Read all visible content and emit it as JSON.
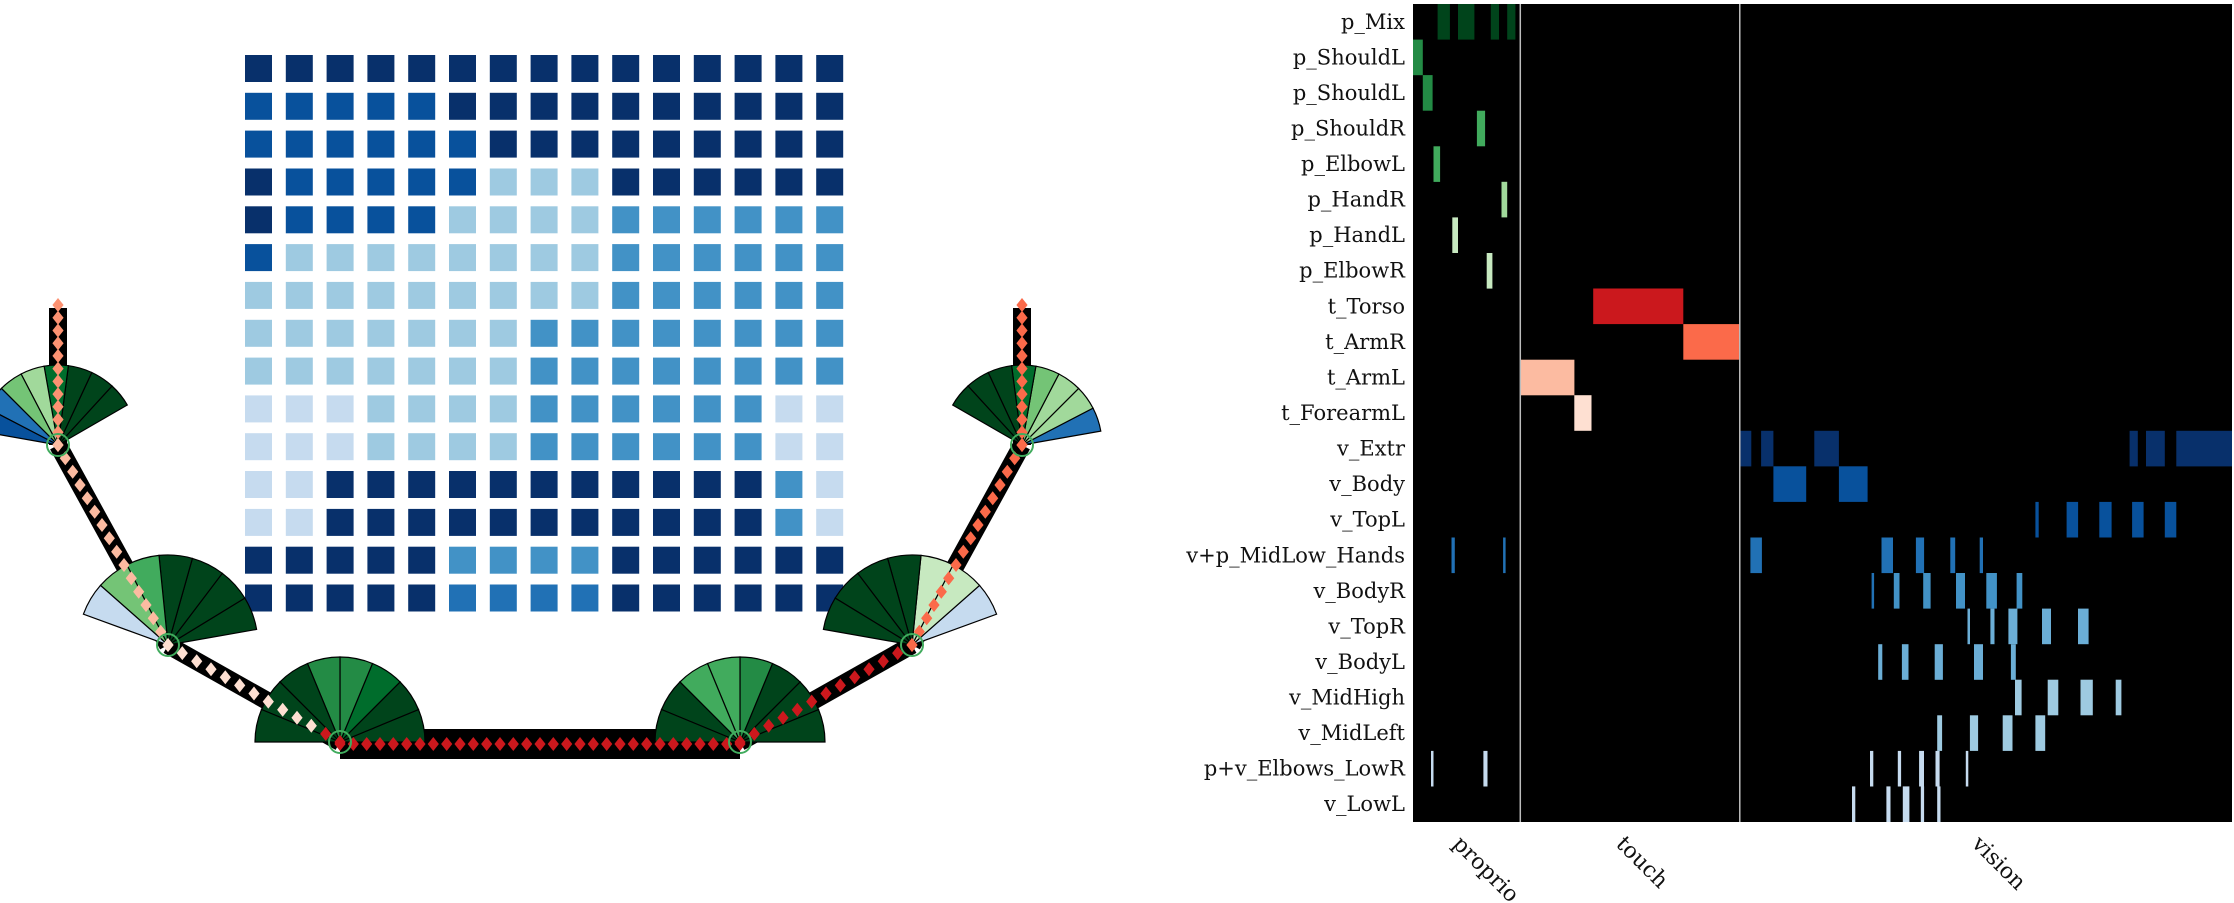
{
  "colors": {
    "blues": [
      "#c6dbef",
      "#9ecae1",
      "#6baed6",
      "#4292c6",
      "#2171b5",
      "#08519c",
      "#08306b"
    ],
    "greens": [
      "#c7e9c0",
      "#a1d99b",
      "#74c476",
      "#41ab5d",
      "#238b45",
      "#006d2c",
      "#00441b"
    ],
    "reds": [
      "#fee0d2",
      "#fcbba1",
      "#fc9272",
      "#fb6a4a",
      "#ef3b2c",
      "#cb181d"
    ],
    "heatmap_background": "#000000",
    "separator": "#bdbdbd"
  },
  "grid_levels": [
    [
      6,
      6,
      6,
      6,
      6,
      6,
      6,
      6,
      6,
      6,
      6,
      6,
      6,
      6,
      6
    ],
    [
      5,
      5,
      5,
      5,
      5,
      6,
      6,
      6,
      6,
      6,
      6,
      6,
      6,
      6,
      6
    ],
    [
      5,
      5,
      5,
      5,
      5,
      5,
      6,
      6,
      6,
      6,
      6,
      6,
      6,
      6,
      6
    ],
    [
      6,
      5,
      5,
      5,
      5,
      5,
      1,
      1,
      1,
      6,
      6,
      6,
      6,
      6,
      6
    ],
    [
      6,
      5,
      5,
      5,
      5,
      1,
      1,
      1,
      1,
      3,
      3,
      3,
      3,
      3,
      3
    ],
    [
      5,
      1,
      1,
      1,
      1,
      1,
      1,
      1,
      1,
      3,
      3,
      3,
      3,
      3,
      3
    ],
    [
      1,
      1,
      1,
      1,
      1,
      1,
      1,
      1,
      1,
      3,
      3,
      3,
      3,
      3,
      3
    ],
    [
      1,
      1,
      1,
      1,
      1,
      1,
      1,
      3,
      3,
      3,
      3,
      3,
      3,
      3,
      3
    ],
    [
      1,
      1,
      1,
      1,
      1,
      1,
      1,
      3,
      3,
      3,
      3,
      3,
      3,
      3,
      3
    ],
    [
      0,
      0,
      0,
      1,
      1,
      1,
      1,
      3,
      3,
      3,
      3,
      3,
      3,
      0,
      0
    ],
    [
      0,
      0,
      0,
      1,
      1,
      1,
      1,
      3,
      3,
      3,
      3,
      3,
      3,
      0,
      0
    ],
    [
      0,
      0,
      6,
      6,
      6,
      6,
      6,
      6,
      6,
      6,
      6,
      6,
      6,
      3,
      0
    ],
    [
      0,
      0,
      6,
      6,
      6,
      6,
      6,
      6,
      6,
      6,
      6,
      6,
      6,
      3,
      0
    ],
    [
      6,
      6,
      6,
      6,
      6,
      3,
      3,
      3,
      3,
      6,
      6,
      6,
      6,
      6,
      6
    ],
    [
      6,
      6,
      6,
      6,
      6,
      4,
      4,
      4,
      4,
      6,
      6,
      6,
      6,
      6,
      6
    ]
  ],
  "heatmap": {
    "rows": [
      "p_Mix",
      "p_ShouldL",
      "p_ShouldL",
      "p_ShouldR",
      "p_ElbowL",
      "p_HandR",
      "p_HandL",
      "p_ElbowR",
      "t_Torso",
      "t_ArmR",
      "t_ArmL",
      "t_ForearmL",
      "v_Extr",
      "v_Body",
      "v_TopL",
      "v+p_MidLow_Hands",
      "v_BodyR",
      "v_TopR",
      "v_BodyL",
      "v_MidHigh",
      "v_MidLeft",
      "p+v_Elbows_LowR",
      "v_LowL"
    ],
    "modalities": [
      "proprio",
      "touch",
      "vision"
    ],
    "modality_bounds": [
      0,
      0.131,
      0.399,
      1.0
    ],
    "cells": [
      [
        0,
        0.03,
        0.045,
        "#00441b"
      ],
      [
        0,
        0.055,
        0.075,
        "#00441b"
      ],
      [
        0,
        0.095,
        0.105,
        "#00441b"
      ],
      [
        0,
        0.115,
        0.125,
        "#00441b"
      ],
      [
        1,
        0.0,
        0.012,
        "#238b45"
      ],
      [
        2,
        0.012,
        0.024,
        "#238b45"
      ],
      [
        3,
        0.078,
        0.088,
        "#41ab5d"
      ],
      [
        4,
        0.025,
        0.033,
        "#41ab5d"
      ],
      [
        5,
        0.108,
        0.115,
        "#a1d99b"
      ],
      [
        6,
        0.048,
        0.055,
        "#c7e9c0"
      ],
      [
        7,
        0.09,
        0.097,
        "#c7e9c0"
      ],
      [
        8,
        0.22,
        0.33,
        "#cb181d"
      ],
      [
        9,
        0.33,
        0.399,
        "#fb6a4a"
      ],
      [
        10,
        0.131,
        0.197,
        "#fcbba1"
      ],
      [
        11,
        0.197,
        0.218,
        "#fee0d2"
      ],
      [
        12,
        0.399,
        0.413,
        "#08306b"
      ],
      [
        12,
        0.425,
        0.44,
        "#08306b"
      ],
      [
        12,
        0.49,
        0.52,
        "#08306b"
      ],
      [
        12,
        0.875,
        0.885,
        "#08306b"
      ],
      [
        12,
        0.895,
        0.918,
        "#08306b"
      ],
      [
        12,
        0.932,
        1.0,
        "#08306b"
      ],
      [
        13,
        0.44,
        0.48,
        "#08519c"
      ],
      [
        13,
        0.52,
        0.555,
        "#08519c"
      ],
      [
        14,
        0.76,
        0.764,
        "#08519c"
      ],
      [
        14,
        0.798,
        0.812,
        "#08519c"
      ],
      [
        14,
        0.838,
        0.853,
        "#08519c"
      ],
      [
        14,
        0.878,
        0.892,
        "#08519c"
      ],
      [
        14,
        0.918,
        0.932,
        "#08519c"
      ],
      [
        15,
        0.047,
        0.051,
        "#2171b5"
      ],
      [
        15,
        0.11,
        0.113,
        "#2171b5"
      ],
      [
        15,
        0.412,
        0.426,
        "#2171b5"
      ],
      [
        15,
        0.572,
        0.586,
        "#2171b5"
      ],
      [
        15,
        0.614,
        0.624,
        "#2171b5"
      ],
      [
        15,
        0.656,
        0.662,
        "#2171b5"
      ],
      [
        15,
        0.692,
        0.696,
        "#2171b5"
      ],
      [
        16,
        0.56,
        0.563,
        "#2171b5"
      ],
      [
        16,
        0.587,
        0.594,
        "#4292c6"
      ],
      [
        16,
        0.623,
        0.632,
        "#4292c6"
      ],
      [
        16,
        0.663,
        0.674,
        "#4292c6"
      ],
      [
        16,
        0.7,
        0.713,
        "#4292c6"
      ],
      [
        16,
        0.737,
        0.744,
        "#4292c6"
      ],
      [
        17,
        0.677,
        0.68,
        "#6baed6"
      ],
      [
        17,
        0.705,
        0.71,
        "#6baed6"
      ],
      [
        17,
        0.727,
        0.738,
        "#6baed6"
      ],
      [
        17,
        0.768,
        0.779,
        "#6baed6"
      ],
      [
        17,
        0.812,
        0.825,
        "#6baed6"
      ],
      [
        18,
        0.568,
        0.573,
        "#6baed6"
      ],
      [
        18,
        0.597,
        0.605,
        "#6baed6"
      ],
      [
        18,
        0.637,
        0.647,
        "#6baed6"
      ],
      [
        18,
        0.685,
        0.696,
        "#6baed6"
      ],
      [
        18,
        0.73,
        0.736,
        "#6baed6"
      ],
      [
        19,
        0.735,
        0.743,
        "#9ecae1"
      ],
      [
        19,
        0.775,
        0.788,
        "#9ecae1"
      ],
      [
        19,
        0.815,
        0.83,
        "#9ecae1"
      ],
      [
        19,
        0.858,
        0.865,
        "#9ecae1"
      ],
      [
        20,
        0.64,
        0.646,
        "#9ecae1"
      ],
      [
        20,
        0.68,
        0.69,
        "#9ecae1"
      ],
      [
        20,
        0.72,
        0.732,
        "#9ecae1"
      ],
      [
        20,
        0.76,
        0.772,
        "#9ecae1"
      ],
      [
        21,
        0.022,
        0.025,
        "#c6dbef"
      ],
      [
        21,
        0.086,
        0.091,
        "#c6dbef"
      ],
      [
        21,
        0.558,
        0.562,
        "#c6dbef"
      ],
      [
        21,
        0.592,
        0.596,
        "#c6dbef"
      ],
      [
        21,
        0.618,
        0.624,
        "#c6dbef"
      ],
      [
        21,
        0.638,
        0.643,
        "#c6dbef"
      ],
      [
        21,
        0.675,
        0.678,
        "#c6dbef"
      ],
      [
        22,
        0.536,
        0.54,
        "#c6dbef"
      ],
      [
        22,
        0.578,
        0.583,
        "#c6dbef"
      ],
      [
        22,
        0.598,
        0.606,
        "#c6dbef"
      ],
      [
        22,
        0.62,
        0.624,
        "#c6dbef"
      ],
      [
        22,
        0.64,
        0.644,
        "#c6dbef"
      ]
    ]
  },
  "robot": {
    "link_color": "#000000",
    "joint_ring_color": "#41ab5d"
  }
}
